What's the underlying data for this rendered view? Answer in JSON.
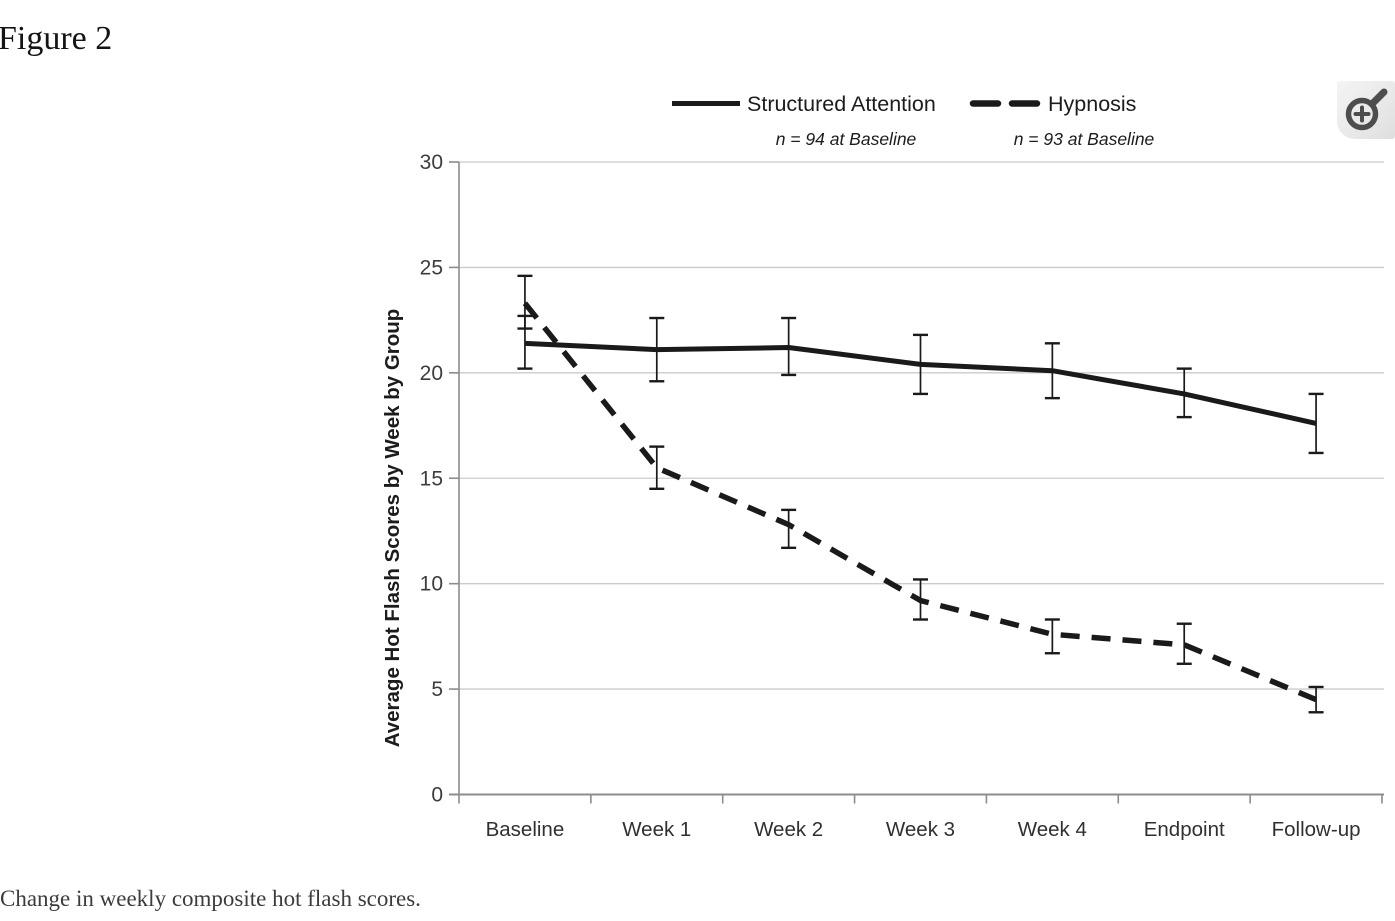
{
  "figure": {
    "title": "Figure 2",
    "caption": "Change in weekly composite hot flash scores."
  },
  "zoom_button": {
    "icon": "magnifier-plus-icon",
    "action_label": "Zoom in on figure"
  },
  "chart_data": {
    "type": "line",
    "title": "",
    "xlabel": "",
    "ylabel": "Average Hot Flash Scores by Week by Group",
    "ylim": [
      0,
      30
    ],
    "yticks": [
      0,
      5,
      10,
      15,
      20,
      25,
      30
    ],
    "grid": "horizontal",
    "legend_position": "top",
    "categories": [
      "Baseline",
      "Week 1",
      "Week 2",
      "Week 3",
      "Week 4",
      "Endpoint",
      "Follow-up"
    ],
    "series": [
      {
        "name": "Structured Attention",
        "subtitle": "n = 94 at Baseline",
        "line_style": "solid",
        "color": "#1a1a1a",
        "values": [
          21.4,
          21.1,
          21.2,
          20.4,
          20.1,
          19.0,
          17.6
        ],
        "error_low": [
          20.2,
          19.6,
          19.9,
          19.0,
          18.8,
          17.9,
          16.2
        ],
        "error_high": [
          22.7,
          22.6,
          22.6,
          21.8,
          21.4,
          20.2,
          19.0
        ]
      },
      {
        "name": "Hypnosis",
        "subtitle": "n = 93 at Baseline",
        "line_style": "dashed",
        "color": "#1a1a1a",
        "values": [
          23.3,
          15.5,
          12.8,
          9.2,
          7.6,
          7.1,
          4.5
        ],
        "error_low": [
          22.1,
          14.5,
          11.7,
          8.3,
          6.7,
          6.2,
          3.9
        ],
        "error_high": [
          24.6,
          16.5,
          13.5,
          10.2,
          8.3,
          8.1,
          5.1
        ]
      }
    ],
    "colors": {
      "grid": "#cbcbcb",
      "axis": "#8c8c8c",
      "series": "#1a1a1a",
      "tick_text": "#3d3d3d",
      "label_text": "#303030"
    }
  }
}
